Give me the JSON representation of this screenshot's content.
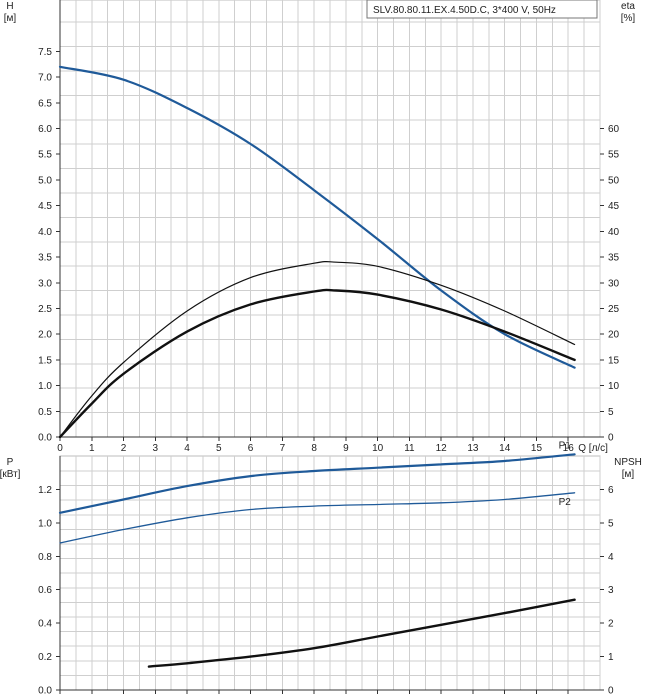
{
  "model_label": "SLV.80.80.11.EX.4.50D.C, 3*400 V, 50Hz",
  "colors": {
    "blue": "#1f5a99",
    "black": "#111111",
    "grid": "#cfcfcf"
  },
  "chart_data": [
    {
      "type": "line",
      "x_label": "Q [л/с]",
      "x_ticks": [
        0,
        1,
        2,
        3,
        4,
        5,
        6,
        7,
        8,
        9,
        10,
        11,
        12,
        13,
        14,
        15,
        16
      ],
      "xlim": [
        0,
        17
      ],
      "left_axis": {
        "label": "H",
        "unit": "[м]",
        "lim": [
          0,
          8.5
        ],
        "ticks": [
          "0.0",
          "0.5",
          "1.0",
          "1.5",
          "2.0",
          "2.5",
          "3.0",
          "3.5",
          "4.0",
          "4.5",
          "5.0",
          "5.5",
          "6.0",
          "6.5",
          "7.0",
          "7.5"
        ]
      },
      "right_axis": {
        "label": "eta",
        "unit": "[%]",
        "lim": [
          0,
          85
        ],
        "ticks": [
          "0",
          "5",
          "10",
          "15",
          "20",
          "25",
          "30",
          "35",
          "40",
          "45",
          "50",
          "55",
          "60"
        ]
      },
      "series": [
        {
          "axis": "left",
          "color": "blue",
          "width": 2.2,
          "x": [
            0,
            2,
            4,
            6,
            8,
            10,
            12,
            14,
            16.2
          ],
          "y": [
            7.2,
            6.95,
            6.4,
            5.7,
            4.8,
            3.85,
            2.85,
            2.0,
            1.35
          ]
        },
        {
          "axis": "right",
          "color": "black",
          "width": 1.2,
          "x": [
            0,
            1,
            2,
            4,
            6,
            8,
            8.7,
            10,
            12,
            14,
            16.2
          ],
          "y": [
            0,
            8,
            14.5,
            24.5,
            31,
            33.8,
            34,
            33.2,
            29.5,
            24.5,
            18
          ]
        },
        {
          "axis": "right",
          "color": "black",
          "width": 2.4,
          "x": [
            0,
            1,
            2,
            4,
            6,
            8,
            8.7,
            10,
            12,
            14,
            16.2
          ],
          "y": [
            0,
            6.5,
            12.3,
            20.5,
            25.8,
            28.3,
            28.5,
            27.7,
            24.8,
            20.5,
            15
          ]
        }
      ]
    },
    {
      "type": "line",
      "x_ticks": [
        0,
        1,
        2,
        3,
        4,
        5,
        6,
        7,
        8,
        9,
        10,
        11,
        12,
        13,
        14,
        15,
        16
      ],
      "xlim": [
        0,
        17
      ],
      "left_axis": {
        "label": "P",
        "unit": "[кВт]",
        "lim": [
          0,
          1.4
        ],
        "ticks": [
          "0.0",
          "0.2",
          "0.4",
          "0.6",
          "0.8",
          "1.0",
          "1.2"
        ]
      },
      "right_axis": {
        "label": "NPSH",
        "unit": "[м]",
        "lim": [
          0,
          7
        ],
        "ticks": [
          "0",
          "1",
          "2",
          "3",
          "4",
          "5",
          "6"
        ]
      },
      "series": [
        {
          "name": "P1",
          "axis": "left",
          "color": "blue",
          "width": 2.2,
          "x": [
            0,
            2,
            4,
            6,
            8,
            10,
            12,
            14,
            16.2
          ],
          "y": [
            1.06,
            1.14,
            1.22,
            1.28,
            1.31,
            1.33,
            1.35,
            1.37,
            1.41
          ]
        },
        {
          "name": "P2",
          "axis": "left",
          "color": "blue",
          "width": 1.3,
          "x": [
            0,
            2,
            4,
            6,
            8,
            10,
            12,
            14,
            16.2
          ],
          "y": [
            0.88,
            0.96,
            1.03,
            1.08,
            1.1,
            1.11,
            1.12,
            1.14,
            1.18
          ]
        },
        {
          "axis": "right",
          "color": "black",
          "width": 2.4,
          "x": [
            2.8,
            4,
            6,
            8,
            10,
            12,
            14,
            16.2
          ],
          "y": [
            0.7,
            0.8,
            1.0,
            1.25,
            1.6,
            1.95,
            2.3,
            2.7
          ]
        }
      ]
    }
  ]
}
